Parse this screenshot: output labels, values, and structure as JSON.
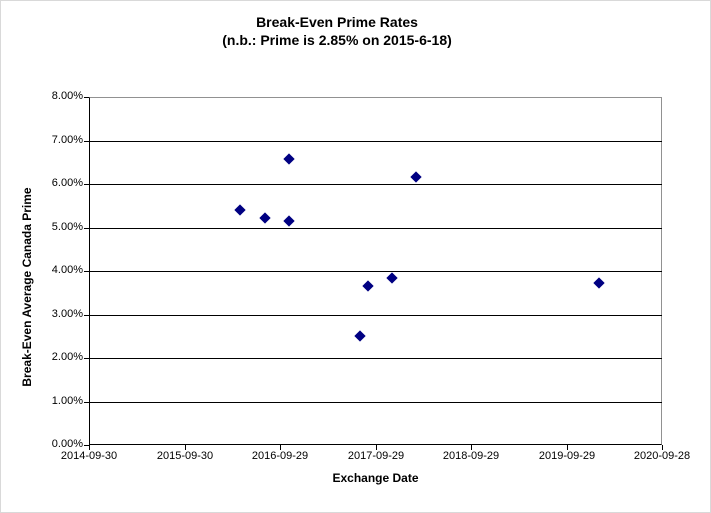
{
  "chart_data": {
    "type": "scatter",
    "title": "Break-Even Prime Rates",
    "subtitle": "(n.b.: Prime is 2.85% on 2015-6-18)",
    "xlabel": "Exchange Date",
    "ylabel": "Break-Even Average Canada Prime",
    "x_ticks": [
      "2014-09-30",
      "2015-09-30",
      "2016-09-29",
      "2017-09-29",
      "2018-09-29",
      "2019-09-29",
      "2020-09-28"
    ],
    "y_ticks": [
      "8.00%",
      "7.00%",
      "6.00%",
      "5.00%",
      "4.00%",
      "3.00%",
      "2.00%",
      "1.00%",
      "0.00%"
    ],
    "x_range": [
      "2014-09-30",
      "2020-09-28"
    ],
    "ylim": [
      0,
      8
    ],
    "grid": "horizontal-major",
    "legend_position": "none",
    "marker": {
      "shape": "diamond",
      "color": "#000082"
    },
    "series": [
      {
        "name": "Break-Even Prime Rate",
        "points": [
          {
            "x": "2016-04-29",
            "y": 5.4
          },
          {
            "x": "2016-08-02",
            "y": 5.22
          },
          {
            "x": "2016-11-02",
            "y": 5.16
          },
          {
            "x": "2016-11-02",
            "y": 6.57
          },
          {
            "x": "2017-07-31",
            "y": 2.51
          },
          {
            "x": "2017-08-31",
            "y": 3.66
          },
          {
            "x": "2017-12-01",
            "y": 3.84
          },
          {
            "x": "2018-03-03",
            "y": 6.16
          },
          {
            "x": "2020-01-31",
            "y": 3.72
          }
        ]
      }
    ]
  }
}
